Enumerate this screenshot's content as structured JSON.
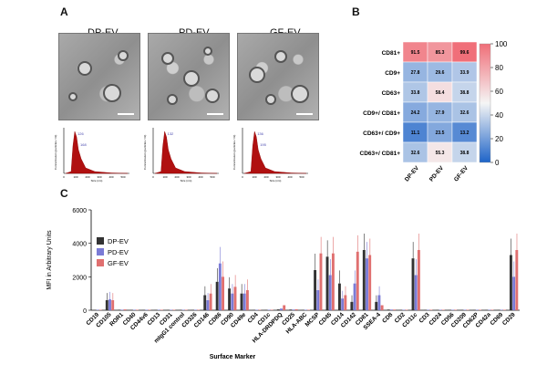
{
  "panels": {
    "a": "A",
    "b": "B",
    "c": "C"
  },
  "em_labels": [
    "DP-EV",
    "PD-EV",
    "GF-EV"
  ],
  "nta": [
    {
      "peak1": "126",
      "peak2": "168"
    },
    {
      "peak1": "132",
      "peak2": ""
    },
    {
      "peak1": "136",
      "peak2": "195"
    }
  ],
  "nta_axis": {
    "ylabel": "Concentration (particles / ml)",
    "xlabel": "Size (nm)",
    "xticks": [
      "0",
      "100",
      "200",
      "300",
      "400",
      "500"
    ]
  },
  "heatmap": {
    "rows": [
      "CD81+",
      "CD9+",
      "CD63+",
      "CD9+/ CD81+",
      "CD63+/ CD9+",
      "CD63+/ CD81+"
    ],
    "cols": [
      "DP-EV",
      "PD-EV",
      "GF-EV"
    ],
    "values": [
      [
        91.5,
        85.3,
        99.6
      ],
      [
        27.8,
        29.6,
        33.9
      ],
      [
        33.8,
        58.4,
        38.8
      ],
      [
        24.2,
        27.9,
        32.6
      ],
      [
        11.1,
        23.5,
        13.2
      ],
      [
        32.6,
        55.3,
        38.8
      ]
    ],
    "labels": [
      [
        "91.5",
        "85.3",
        "99.6"
      ],
      [
        "27.8",
        "29.6",
        "33.9"
      ],
      [
        "33.8",
        "58.4",
        "38.8"
      ],
      [
        "24.2",
        "27.9",
        "32.6"
      ],
      [
        "11.1",
        "23.5",
        "13.2"
      ],
      [
        "32.6",
        "55.3",
        "38.8"
      ]
    ],
    "colorbar_ticks": [
      "100",
      "80",
      "60",
      "40",
      "20",
      "0"
    ]
  },
  "chart_data": {
    "type": "bar",
    "ylabel": "MFI in Arbitrary Units",
    "xlabel": "Surface Marker",
    "ylim": [
      0,
      6000
    ],
    "yticks": [
      "6000",
      "4000",
      "2000",
      "0"
    ],
    "legend": [
      "DP-EV",
      "PD-EV",
      "GF-EV"
    ],
    "colors": [
      "#333333",
      "#7b7bd6",
      "#e07070"
    ],
    "categories": [
      "CD19",
      "CD105",
      "ROR1",
      "CD40",
      "CD44v6",
      "CD13",
      "CD31",
      "mIgG1 control",
      "CD326",
      "CD146",
      "CD86",
      "CD90",
      "CD49e",
      "CD4",
      "CD1c",
      "HLA-DRDPDQ",
      "CD25",
      "HLA-ABC",
      "MCSP",
      "CD45",
      "CD14",
      "CD142",
      "CD81",
      "SSEA-4",
      "CD8",
      "CD2",
      "CD11c",
      "CD3",
      "CD24",
      "CD56",
      "CD209",
      "CD62P",
      "CD42a",
      "CD69",
      "CD29"
    ],
    "series": [
      {
        "name": "DP-EV",
        "values": [
          10,
          600,
          30,
          10,
          10,
          10,
          10,
          10,
          20,
          900,
          1700,
          1300,
          1000,
          10,
          10,
          50,
          40,
          10,
          2400,
          3200,
          1600,
          500,
          3600,
          500,
          40,
          20,
          3100,
          10,
          10,
          20,
          20,
          10,
          10,
          20,
          3300
        ]
      },
      {
        "name": "PD-EV",
        "values": [
          10,
          650,
          30,
          10,
          10,
          10,
          10,
          10,
          20,
          600,
          2800,
          1000,
          1000,
          10,
          10,
          100,
          40,
          10,
          1200,
          2100,
          700,
          1600,
          3100,
          900,
          40,
          20,
          2100,
          10,
          10,
          20,
          20,
          10,
          10,
          20,
          2000
        ]
      },
      {
        "name": "GF-EV",
        "values": [
          10,
          600,
          50,
          10,
          10,
          10,
          10,
          10,
          20,
          1000,
          2000,
          1400,
          1200,
          10,
          10,
          300,
          60,
          10,
          3400,
          3400,
          900,
          3500,
          3300,
          300,
          40,
          20,
          3600,
          10,
          10,
          20,
          20,
          10,
          10,
          20,
          3600
        ]
      }
    ]
  }
}
